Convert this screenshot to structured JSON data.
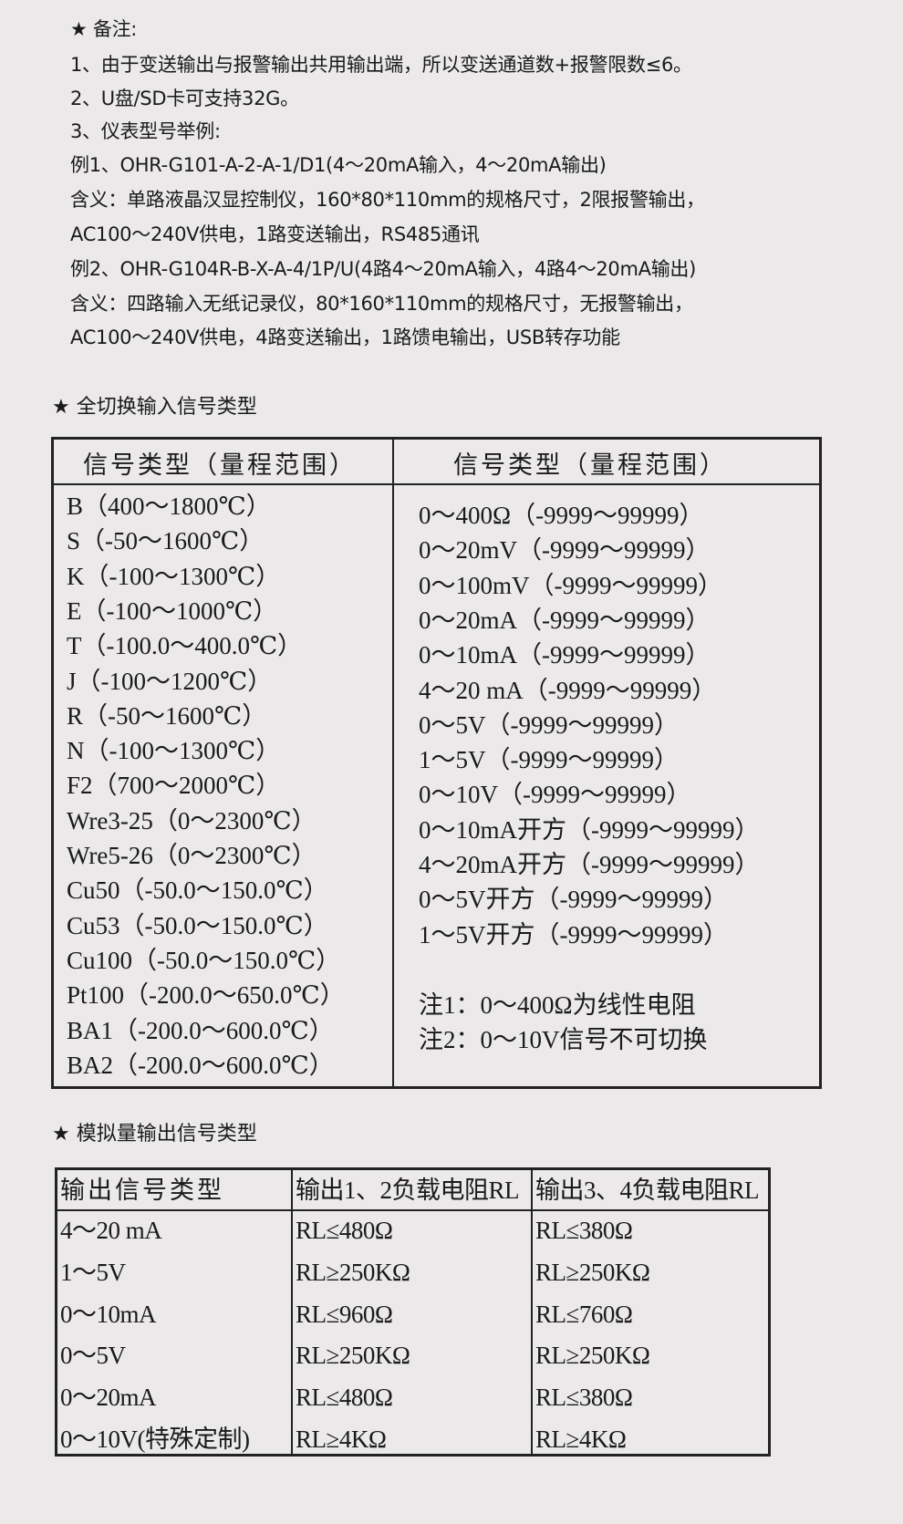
{
  "notes": {
    "title": "★ 备注:",
    "lines": [
      "1、由于变送输出与报警输出共用输出端，所以变送通道数+报警限数≤6。",
      "2、U盘/SD卡可支持32G。",
      "3、仪表型号举例:",
      "例1、OHR-G101-A-2-A-1/D1(4～20mA输入，4～20mA输出)",
      "含义：单路液晶汉显控制仪，160*80*110mm的规格尺寸，2限报警输出，",
      "AC100～240V供电，1路变送输出，RS485通讯",
      "例2、OHR-G104R-B-X-A-4/1P/U(4路4～20mA输入，4路4～20mA输出)",
      "含义：四路输入无纸记录仪，80*160*110mm的规格尺寸，无报警输出，",
      "AC100～240V供电，4路变送输出，1路馈电输出，USB转存功能"
    ]
  },
  "input_section": {
    "title": "★ 全切换输入信号类型",
    "headers": [
      "信号类型（量程范围）",
      "信号类型（量程范围）"
    ],
    "left": [
      "B（400～1800℃）",
      "S（-50～1600℃）",
      "K（-100～1300℃）",
      "E（-100～1000℃）",
      "T（-100.0～400.0℃）",
      "J（-100～1200℃）",
      "R（-50～1600℃）",
      "N（-100～1300℃）",
      "F2（700～2000℃）",
      "Wre3-25（0～2300℃）",
      "Wre5-26（0～2300℃）",
      "Cu50（-50.0～150.0℃）",
      "Cu53（-50.0～150.0℃）",
      "Cu100（-50.0～150.0℃）",
      "Pt100（-200.0～650.0℃）",
      "BA1（-200.0～600.0℃）",
      "BA2（-200.0～600.0℃）"
    ],
    "right": [
      "0～400Ω（-9999～99999）",
      "0～20mV（-9999～99999）",
      "0～100mV（-9999～99999）",
      "0～20mA（-9999～99999）",
      "0～10mA（-9999～99999）",
      "4～20 mA（-9999～99999）",
      "0～5V（-9999～99999）",
      "1～5V（-9999～99999）",
      "0～10V（-9999～99999）",
      "0～10mA开方（-9999～99999）",
      "4～20mA开方（-9999～99999）",
      "0～5V开方（-9999～99999）",
      "1～5V开方（-9999～99999）"
    ],
    "footnotes": [
      "注1：0～400Ω为线性电阻",
      "注2：0～10V信号不可切换"
    ]
  },
  "output_section": {
    "title": "★ 模拟量输出信号类型",
    "headers": [
      "输出信号类型",
      "输出1、2负载电阻RL",
      "输出3、4负载电阻RL"
    ],
    "rows": [
      [
        "4～20 mA",
        "RL≤480Ω",
        "RL≤380Ω"
      ],
      [
        "1～5V",
        "RL≥250KΩ",
        "RL≥250KΩ"
      ],
      [
        "0～10mA",
        "RL≤960Ω",
        "RL≤760Ω"
      ],
      [
        "0～5V",
        "RL≥250KΩ",
        "RL≥250KΩ"
      ],
      [
        "0～20mA",
        "RL≤480Ω",
        "RL≤380Ω"
      ],
      [
        "0～10V(特殊定制)",
        "RL≥4KΩ",
        "RL≥4KΩ"
      ]
    ]
  }
}
